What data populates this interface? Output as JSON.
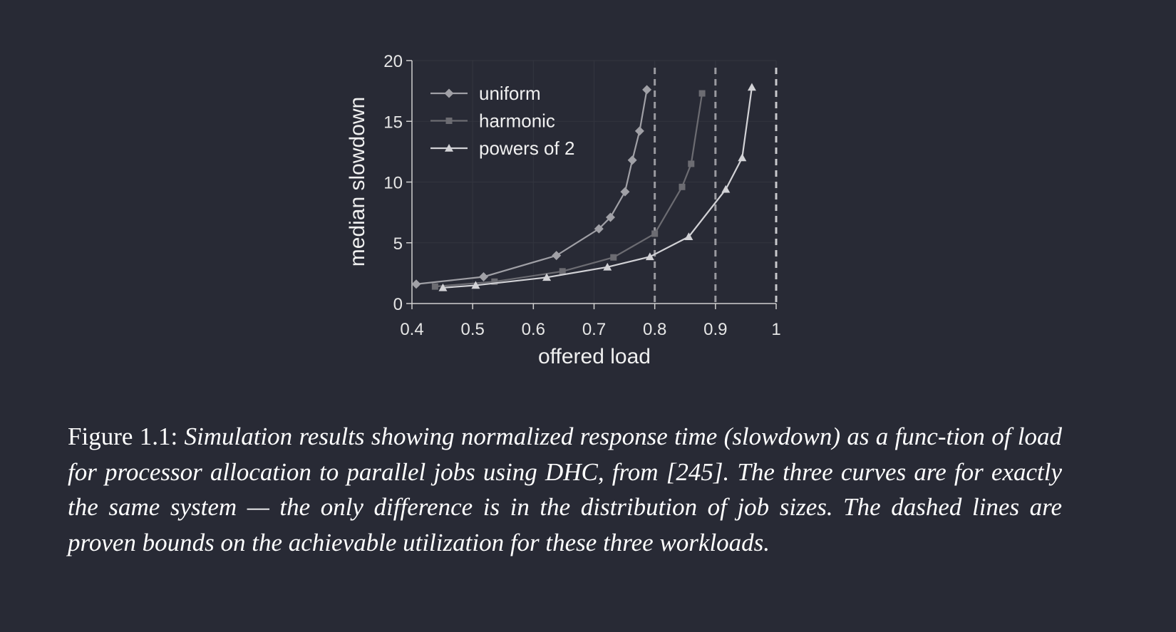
{
  "chart_data": {
    "type": "line",
    "xlabel": "offered load",
    "ylabel": "median slowdown",
    "xlim": [
      0.4,
      1.0
    ],
    "ylim": [
      0,
      20
    ],
    "xticks": [
      "0.4",
      "0.5",
      "0.6",
      "0.7",
      "0.8",
      "0.9",
      "1"
    ],
    "yticks": [
      "0",
      "5",
      "10",
      "15",
      "20"
    ],
    "grid": true,
    "legend_position": "top-left",
    "bounds": [
      0.8,
      0.9,
      1.0
    ],
    "series": [
      {
        "name": "uniform",
        "marker": "diamond",
        "color": "#a0a0a6",
        "x": [
          0.407,
          0.518,
          0.638,
          0.708,
          0.727,
          0.751,
          0.763,
          0.775,
          0.787
        ],
        "y": [
          1.6,
          2.2,
          3.95,
          6.15,
          7.1,
          9.2,
          11.8,
          14.2,
          17.6
        ]
      },
      {
        "name": "harmonic",
        "marker": "square",
        "color": "#6c6c72",
        "x": [
          0.438,
          0.536,
          0.648,
          0.732,
          0.8,
          0.845,
          0.86,
          0.878
        ],
        "y": [
          1.4,
          1.8,
          2.65,
          3.8,
          5.75,
          9.6,
          11.5,
          17.3
        ]
      },
      {
        "name": "powers of 2",
        "marker": "triangle",
        "color": "#d2d2d6",
        "x": [
          0.451,
          0.505,
          0.622,
          0.722,
          0.792,
          0.856,
          0.917,
          0.944,
          0.96
        ],
        "y": [
          1.3,
          1.5,
          2.15,
          3.0,
          3.85,
          5.5,
          9.4,
          12.0,
          17.8
        ]
      }
    ]
  },
  "caption": {
    "label": "Figure 1.1:",
    "text": "Simulation results showing normalized response time (slowdown) as a func-tion of load for processor allocation to parallel jobs using DHC, from [245]. The three curves are for exactly the same system — the only difference is in the distribution of job sizes. The dashed lines are proven bounds on the achievable utilization for these three workloads."
  },
  "colors": {
    "background": "#282a35",
    "axis": "#d0d0d0",
    "grid": "#33353f",
    "bound": "#9a9aa0",
    "bound_last": "#c8c8cc",
    "text": "#f0f0f0"
  }
}
